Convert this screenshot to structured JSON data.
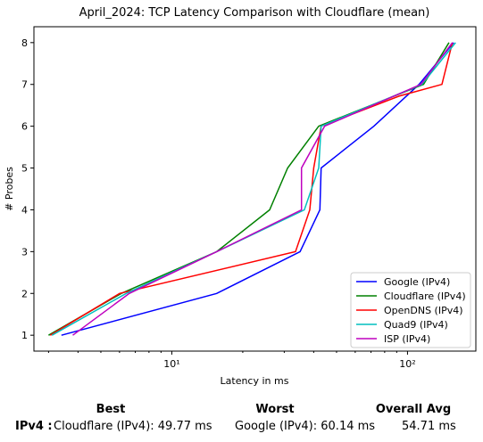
{
  "chart_data": {
    "type": "line",
    "title": "April_2024: TCP Latency Comparison with Cloudflare (mean)",
    "xlabel": "Latency in ms",
    "ylabel": "# Probes",
    "xscale": "log",
    "xlim": [
      2.6,
      195
    ],
    "ylim": [
      0.62,
      8.38
    ],
    "x_ticks": [
      {
        "value": 10,
        "label": "10¹"
      },
      {
        "value": 100,
        "label": "10²"
      }
    ],
    "y_ticks": [
      1,
      2,
      3,
      4,
      5,
      6,
      7,
      8
    ],
    "grid": false,
    "legend_position": "bottom-right",
    "series": [
      {
        "name": "Google (IPv4)",
        "color": "#0000ff",
        "points": [
          [
            3.4,
            1
          ],
          [
            15.5,
            2
          ],
          [
            35,
            3
          ],
          [
            42.5,
            4
          ],
          [
            43,
            5
          ],
          [
            72,
            6
          ],
          [
            112,
            7
          ],
          [
            157,
            8
          ]
        ]
      },
      {
        "name": "Cloudflare (IPv4)",
        "color": "#008000",
        "points": [
          [
            3.0,
            1
          ],
          [
            6.1,
            2
          ],
          [
            15.5,
            3
          ],
          [
            26,
            4
          ],
          [
            31,
            5
          ],
          [
            42,
            6
          ],
          [
            117,
            7
          ],
          [
            150,
            8
          ]
        ]
      },
      {
        "name": "OpenDNS (IPv4)",
        "color": "#ff0000",
        "points": [
          [
            3.05,
            1
          ],
          [
            6.0,
            2
          ],
          [
            33.5,
            3
          ],
          [
            38.5,
            4
          ],
          [
            40,
            5
          ],
          [
            43,
            6
          ],
          [
            92,
            6.72
          ],
          [
            140,
            7
          ],
          [
            155,
            8
          ]
        ]
      },
      {
        "name": "Quad9 (IPv4)",
        "color": "#00bfbf",
        "points": [
          [
            3.1,
            1
          ],
          [
            6.4,
            2
          ],
          [
            15.5,
            3
          ],
          [
            36.5,
            4
          ],
          [
            42,
            5
          ],
          [
            43,
            6
          ],
          [
            115,
            7
          ],
          [
            160,
            8
          ]
        ]
      },
      {
        "name": "ISP (IPv4)",
        "color": "#bf00bf",
        "points": [
          [
            3.8,
            1
          ],
          [
            6.6,
            2
          ],
          [
            15.5,
            3
          ],
          [
            35.5,
            4
          ],
          [
            35.5,
            5
          ],
          [
            44.5,
            6
          ],
          [
            114,
            7
          ],
          [
            155,
            8
          ]
        ]
      }
    ]
  },
  "summary": {
    "best_header": "Best",
    "worst_header": "Worst",
    "avg_header": "Overall Avg",
    "row_label": "IPv4 :",
    "best_value": "Cloudflare (IPv4): 49.77 ms",
    "worst_value": "Google (IPv4): 60.14 ms",
    "avg_value": "54.71 ms"
  }
}
